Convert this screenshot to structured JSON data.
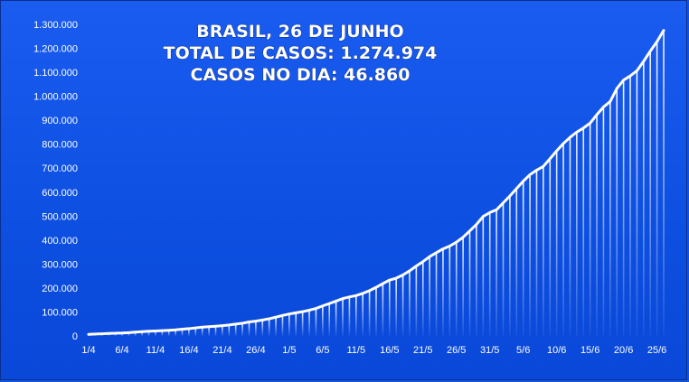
{
  "chart_data": {
    "type": "area",
    "title_lines": [
      "BRASIL,  26 DE JUNHO",
      "TOTAL DE CASOS: 1.274.974",
      "CASOS NO DIA: 46.860"
    ],
    "xlabel": "",
    "ylabel": "",
    "ylim": [
      0,
      1300000
    ],
    "y_ticks": [
      "0",
      "100.000",
      "200.000",
      "300.000",
      "400.000",
      "500.000",
      "600.000",
      "700.000",
      "800.000",
      "900.000",
      "1.000.000",
      "1.100.000",
      "1.200.000",
      "1.300.000"
    ],
    "x_tick_labels": [
      "1/4",
      "6/4",
      "11/4",
      "16/4",
      "21/4",
      "26/4",
      "1/5",
      "6/5",
      "11/5",
      "16/5",
      "21/5",
      "26/5",
      "31/5",
      "5/6",
      "10/6",
      "15/6",
      "20/6",
      "25/6"
    ],
    "grid": false,
    "legend": "none",
    "series": [
      {
        "x": [
          "1/4",
          "2/4",
          "3/4",
          "4/4",
          "5/4",
          "6/4",
          "7/4",
          "8/4",
          "9/4",
          "10/4",
          "11/4",
          "12/4",
          "13/4",
          "14/4",
          "15/4",
          "16/4",
          "17/4",
          "18/4",
          "19/4",
          "20/4",
          "21/4",
          "22/4",
          "23/4",
          "24/4",
          "25/4",
          "26/4",
          "27/4",
          "28/4",
          "29/4",
          "30/4",
          "1/5",
          "2/5",
          "3/5",
          "4/5",
          "5/5",
          "6/5",
          "7/5",
          "8/5",
          "9/5",
          "10/5",
          "11/5",
          "12/5",
          "13/5",
          "14/5",
          "15/5",
          "16/5",
          "17/5",
          "18/5",
          "19/5",
          "20/5",
          "21/5",
          "22/5",
          "23/5",
          "24/5",
          "25/5",
          "26/5",
          "27/5",
          "28/5",
          "29/5",
          "30/5",
          "31/5",
          "1/6",
          "2/6",
          "3/6",
          "4/6",
          "5/6",
          "6/6",
          "7/6",
          "8/6",
          "9/6",
          "10/6",
          "11/6",
          "12/6",
          "13/6",
          "14/6",
          "15/6",
          "16/6",
          "17/6",
          "18/6",
          "19/6",
          "20/6",
          "21/6",
          "22/6",
          "23/6",
          "24/6",
          "25/6",
          "26/6"
        ],
        "values": [
          6836,
          8044,
          9056,
          10360,
          11130,
          12056,
          13717,
          15927,
          17857,
          19638,
          20727,
          22169,
          23430,
          25262,
          28320,
          30425,
          33682,
          36599,
          38654,
          40581,
          43079,
          45757,
          49492,
          52995,
          58509,
          61888,
          66501,
          71886,
          78162,
          85380,
          91589,
          96559,
          101147,
          107780,
          114715,
          125218,
          135106,
          145328,
          155939,
          162699,
          168331,
          177589,
          188974,
          202918,
          218223,
          233142,
          241080,
          254220,
          271628,
          291579,
          310087,
          330890,
          347398,
          363211,
          374898,
          391222,
          411821,
          438238,
          465166,
          498440,
          514849,
          526447,
          555383,
          584016,
          614941,
          645771,
          672846,
          691758,
          707412,
          739503,
          772416,
          802828,
          828810,
          850514,
          867624,
          888271,
          923189,
          955377,
          978142,
          1032913,
          1067579,
          1085038,
          1106470,
          1145906,
          1188631,
          1228114,
          1274974
        ]
      }
    ]
  }
}
